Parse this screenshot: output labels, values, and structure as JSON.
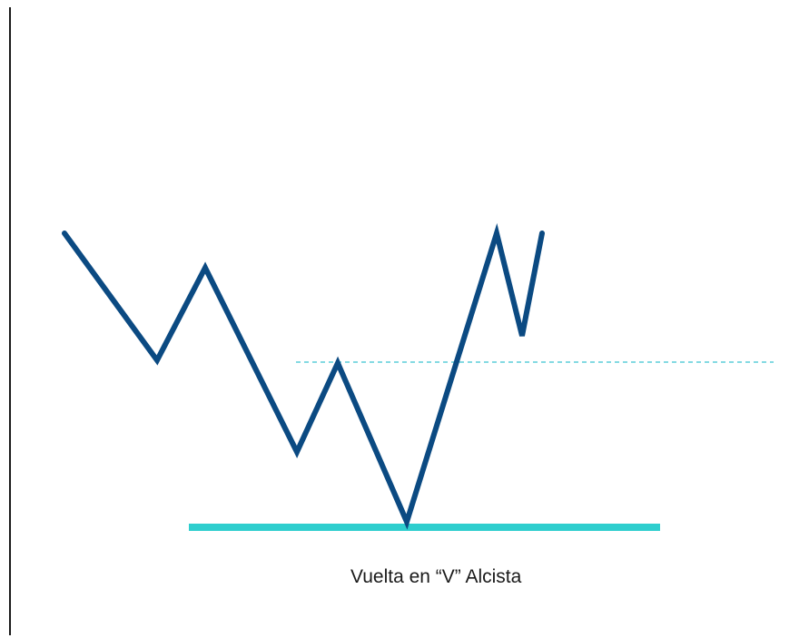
{
  "caption": "Vuelta en “V” Alcista",
  "colors": {
    "background": "#ffffff",
    "price_line": "#0b4a82",
    "support_line": "#2ecece",
    "resistance_line": "#3bc4d0",
    "axis": "#1a1a1a",
    "caption": "#1a1a1a"
  }
}
